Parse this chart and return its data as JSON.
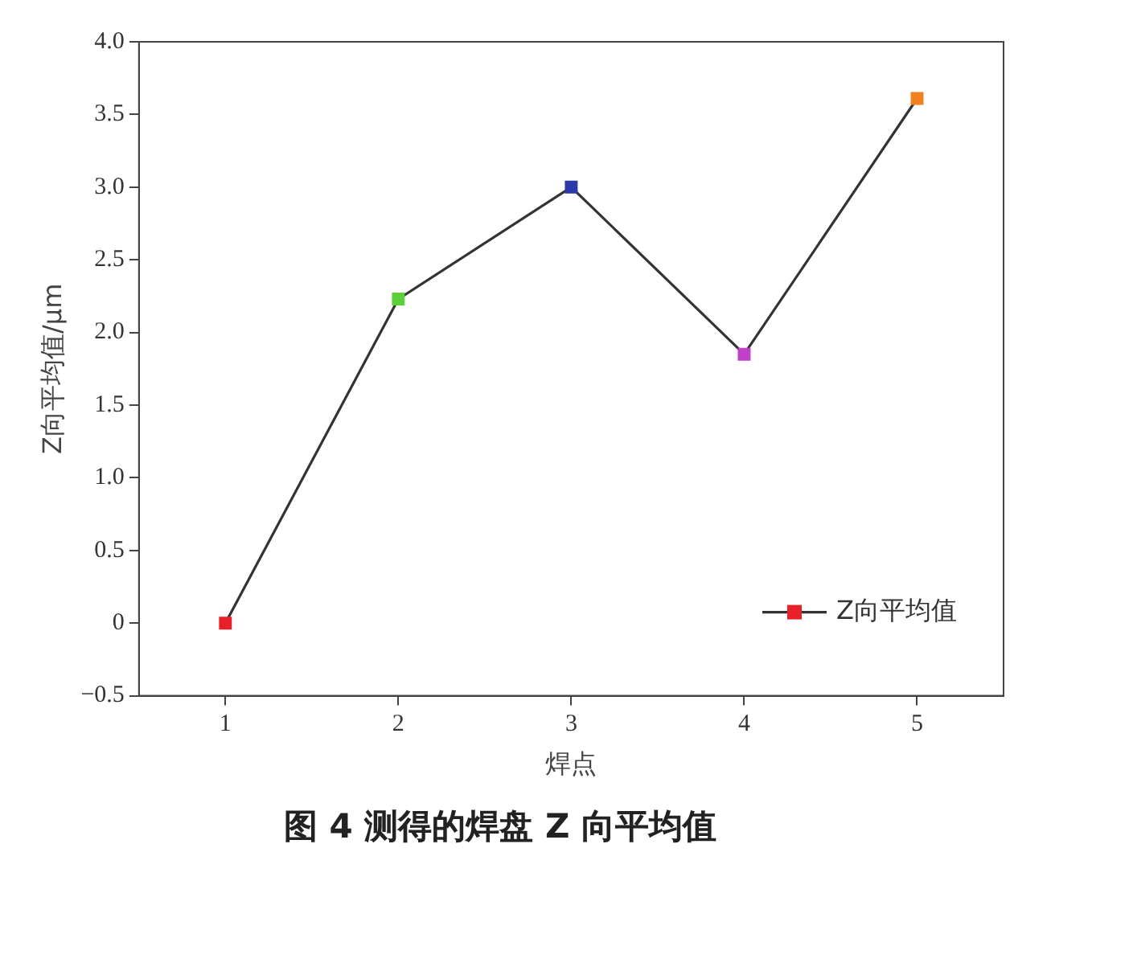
{
  "chart_data": {
    "type": "line",
    "title": "图 4  测得的焊盘 Z 向平均值",
    "xlabel": "焊点",
    "ylabel": "Z向平均值/μm",
    "x": [
      1,
      2,
      3,
      4,
      5
    ],
    "series": [
      {
        "name": "Z向平均值",
        "color": "#333333",
        "colors": [
          "#e8202a",
          "#5ccf3a",
          "#2a3aa8",
          "#c040c8",
          "#f08020"
        ],
        "values": [
          0,
          2.23,
          3.0,
          1.85,
          3.61
        ]
      }
    ],
    "xlim": [
      0.5,
      5.5
    ],
    "xticks": [
      1,
      2,
      3,
      4,
      5
    ],
    "ylim": [
      -0.5,
      4.0
    ],
    "yticks": [
      {
        "value": -0.5,
        "label": "−0.5"
      },
      0,
      {
        "value": 0.5,
        "label": "0.5"
      },
      {
        "value": 1,
        "label": "1.0"
      },
      {
        "value": 1.5,
        "label": "1.5"
      },
      {
        "value": 2,
        "label": "2.0"
      },
      {
        "value": 2.5,
        "label": "2.5"
      },
      {
        "value": 3,
        "label": "3.0"
      },
      {
        "value": 3.5,
        "label": "3.5"
      },
      {
        "value": 4,
        "label": "4.0"
      }
    ],
    "grid": false,
    "legend": "bottom right",
    "marker": "square",
    "line_style": "solid"
  }
}
